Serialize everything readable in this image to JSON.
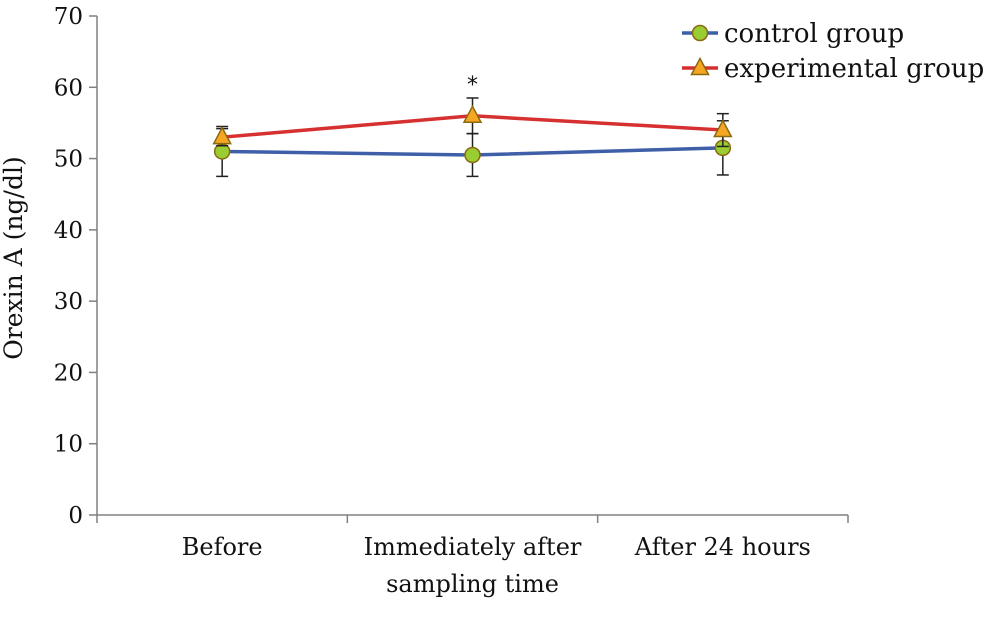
{
  "chart_data": {
    "type": "line",
    "title": "",
    "xlabel": "",
    "ylabel": "Orexin A (ng/dl)",
    "ylim": [
      0,
      70
    ],
    "yticks": [
      "0",
      "10",
      "20",
      "30",
      "40",
      "50",
      "60",
      "70"
    ],
    "categories": [
      [
        "Before"
      ],
      [
        "Immediately after",
        "sampling time"
      ],
      [
        "After 24 hours"
      ]
    ],
    "grid": false,
    "legend_position": "top-right",
    "series": [
      {
        "name": "control group",
        "values": [
          51.0,
          50.5,
          51.5
        ],
        "error": [
          3.5,
          3.0,
          3.8
        ],
        "line_color": "#3f5fa8",
        "marker": "circle",
        "marker_color": "#9acd32"
      },
      {
        "name": "experimental group",
        "values": [
          53.0,
          56.0,
          54.0
        ],
        "error": [
          1.2,
          2.5,
          2.3
        ],
        "line_color": "#d63030",
        "marker": "triangle",
        "marker_color": "#f5a623"
      }
    ],
    "annotations": [
      {
        "text": "*",
        "category_index": 1
      }
    ]
  }
}
